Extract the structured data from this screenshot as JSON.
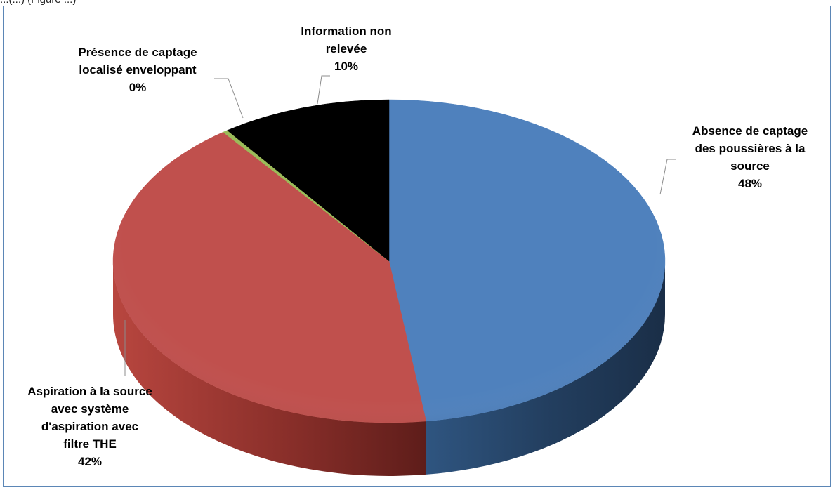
{
  "header_fragment": "...(...)  (Figure ...)",
  "chart_data": {
    "type": "pie",
    "title": "",
    "three_d": true,
    "legend": "none",
    "slices": [
      {
        "label_lines": [
          "Absence de captage",
          "des poussières à la",
          "source"
        ],
        "value": 48,
        "value_label": "48%",
        "color": "#4f81bd"
      },
      {
        "label_lines": [
          "Aspiration à la source",
          "avec système",
          "d'aspiration avec",
          "filtre THE"
        ],
        "value": 42,
        "value_label": "42%",
        "color": "#c0504d"
      },
      {
        "label_lines": [
          "Présence de captage",
          "localisé enveloppant"
        ],
        "value": 0.3,
        "value_label": "0%",
        "color": "#9bbb59"
      },
      {
        "label_lines": [
          "Information non",
          "relevée"
        ],
        "value": 10,
        "value_label": "10%",
        "color": "#000000"
      }
    ]
  }
}
